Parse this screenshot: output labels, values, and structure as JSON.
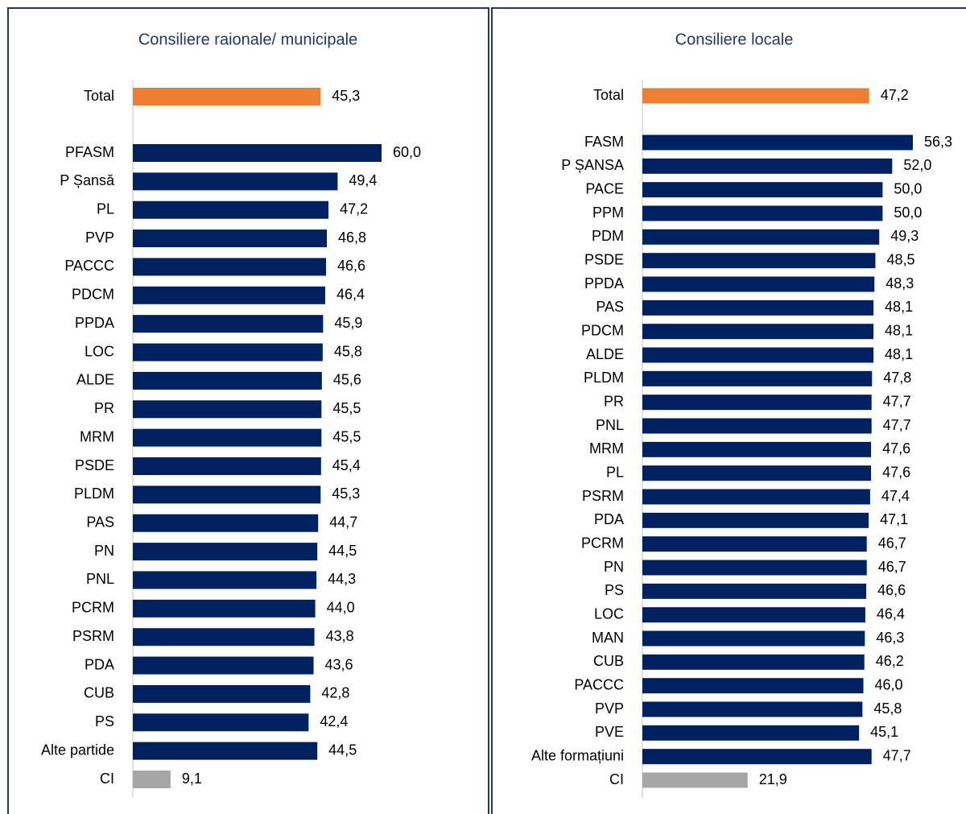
{
  "chart_data": [
    {
      "type": "barh",
      "title": "Consiliere raionale/ municipale",
      "categories": [
        "Total",
        "PFASM",
        "P Șansă",
        "PL",
        "PVP",
        "PACCC",
        "PDCM",
        "PPDA",
        "LOC",
        "ALDE",
        "PR",
        "MRM",
        "PSDE",
        "PLDM",
        "PAS",
        "PN",
        "PNL",
        "PCRM",
        "PSRM",
        "PDA",
        "CUB",
        "PS",
        "Alte partide",
        "CI"
      ],
      "values": [
        45.3,
        60.0,
        49.4,
        47.2,
        46.8,
        46.6,
        46.4,
        45.9,
        45.8,
        45.6,
        45.5,
        45.5,
        45.4,
        45.3,
        44.7,
        44.5,
        44.3,
        44.0,
        43.8,
        43.6,
        42.8,
        42.4,
        44.5,
        9.1
      ],
      "value_labels": [
        "45,3",
        "60,0",
        "49,4",
        "47,2",
        "46,8",
        "46,6",
        "46,4",
        "45,9",
        "45,8",
        "45,6",
        "45,5",
        "45,5",
        "45,4",
        "45,3",
        "44,7",
        "44,5",
        "44,3",
        "44,0",
        "43,8",
        "43,6",
        "42,8",
        "42,4",
        "44,5",
        "9,1"
      ],
      "colors": [
        "#ed7d31",
        "#002060",
        "#002060",
        "#002060",
        "#002060",
        "#002060",
        "#002060",
        "#002060",
        "#002060",
        "#002060",
        "#002060",
        "#002060",
        "#002060",
        "#002060",
        "#002060",
        "#002060",
        "#002060",
        "#002060",
        "#002060",
        "#002060",
        "#002060",
        "#002060",
        "#002060",
        "#a6a6a6"
      ]
    },
    {
      "type": "barh",
      "title": "Consiliere locale",
      "categories": [
        "Total",
        "FASM",
        "P ȘANSA",
        "PACE",
        "PPM",
        "PDM",
        "PSDE",
        "PPDA",
        "PAS",
        "PDCM",
        "ALDE",
        "PLDM",
        "PR",
        "PNL",
        "MRM",
        "PL",
        "PSRM",
        "PDA",
        "PCRM",
        "PN",
        "PS",
        "LOC",
        "MAN",
        "CUB",
        "PACCC",
        "PVP",
        "PVE",
        "Alte formațiuni",
        "CI"
      ],
      "values": [
        47.2,
        56.3,
        52.0,
        50.0,
        50.0,
        49.3,
        48.5,
        48.3,
        48.1,
        48.1,
        48.1,
        47.8,
        47.7,
        47.7,
        47.6,
        47.6,
        47.4,
        47.1,
        46.7,
        46.7,
        46.6,
        46.4,
        46.3,
        46.2,
        46.0,
        45.8,
        45.1,
        47.7,
        21.9
      ],
      "value_labels": [
        "47,2",
        "56,3",
        "52,0",
        "50,0",
        "50,0",
        "49,3",
        "48,5",
        "48,3",
        "48,1",
        "48,1",
        "48,1",
        "47,8",
        "47,7",
        "47,7",
        "47,6",
        "47,6",
        "47,4",
        "47,1",
        "46,7",
        "46,7",
        "46,6",
        "46,4",
        "46,3",
        "46,2",
        "46,0",
        "45,8",
        "45,1",
        "47,7",
        "21,9"
      ],
      "colors": [
        "#ed7d31",
        "#002060",
        "#002060",
        "#002060",
        "#002060",
        "#002060",
        "#002060",
        "#002060",
        "#002060",
        "#002060",
        "#002060",
        "#002060",
        "#002060",
        "#002060",
        "#002060",
        "#002060",
        "#002060",
        "#002060",
        "#002060",
        "#002060",
        "#002060",
        "#002060",
        "#002060",
        "#002060",
        "#002060",
        "#002060",
        "#002060",
        "#002060",
        "#a6a6a6"
      ]
    }
  ]
}
